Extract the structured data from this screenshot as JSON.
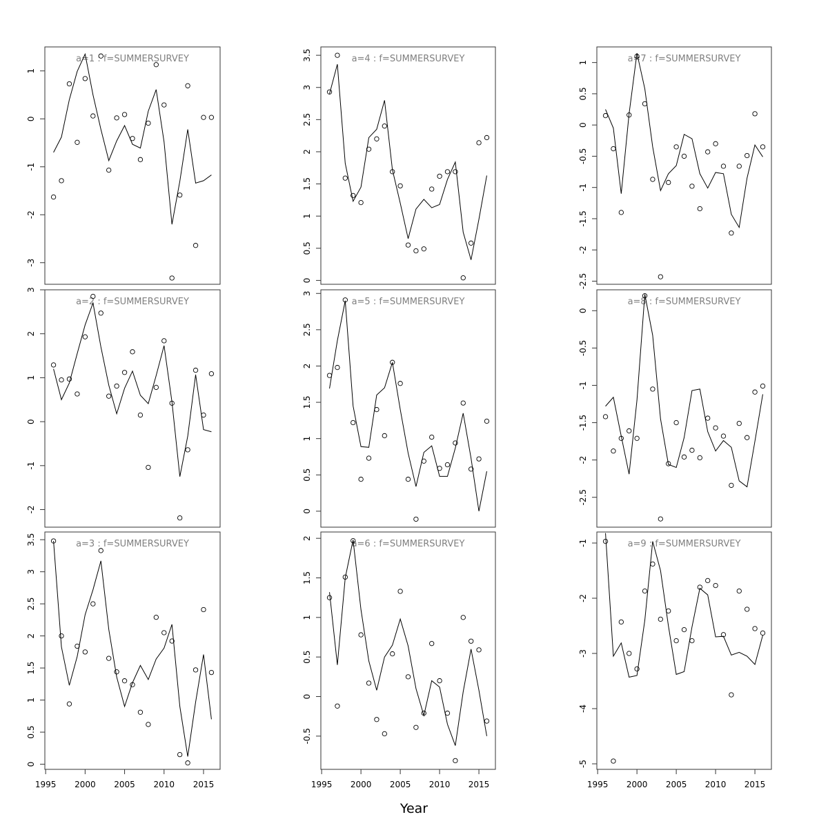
{
  "figure": {
    "xlabel": "Year",
    "x_ticks": [
      1995,
      2000,
      2005,
      2010,
      2015
    ]
  },
  "chart_data": [
    {
      "type": "scatter",
      "title": "a=1  :  f=SUMMERSURVEY",
      "x": [
        1996,
        1997,
        1998,
        1999,
        2000,
        2001,
        2002,
        2003,
        2004,
        2005,
        2006,
        2007,
        2008,
        2009,
        2010,
        2011,
        2012,
        2013,
        2014,
        2015,
        2016
      ],
      "y_ticks": [
        -3,
        -2,
        -1,
        0,
        1
      ],
      "ylim": [
        -3.45,
        1.5
      ],
      "series": [
        {
          "kind": "points",
          "values": [
            -1.63,
            -1.29,
            0.73,
            -0.49,
            0.84,
            0.06,
            1.31,
            -1.07,
            0.02,
            0.09,
            -0.41,
            -0.85,
            -0.09,
            1.13,
            0.29,
            -3.32,
            -1.59,
            0.69,
            -2.64,
            0.03,
            0.03
          ]
        },
        {
          "kind": "line",
          "values": [
            -0.7,
            -0.38,
            0.4,
            0.99,
            1.35,
            0.5,
            -0.22,
            -0.87,
            -0.46,
            -0.14,
            -0.53,
            -0.61,
            0.16,
            0.61,
            -0.48,
            -2.2,
            -1.3,
            -0.22,
            -1.34,
            -1.29,
            -1.17
          ]
        }
      ]
    },
    {
      "type": "scatter",
      "title": "a=2  :  f=SUMMERSURVEY",
      "x": [
        1996,
        1997,
        1998,
        1999,
        2000,
        2001,
        2002,
        2003,
        2004,
        2005,
        2006,
        2007,
        2008,
        2009,
        2010,
        2011,
        2012,
        2013,
        2014,
        2015,
        2016
      ],
      "y_ticks": [
        -2,
        -1,
        0,
        1,
        2,
        3
      ],
      "ylim": [
        -2.4,
        3.0
      ],
      "series": [
        {
          "kind": "points",
          "values": [
            1.29,
            0.95,
            0.97,
            0.63,
            1.93,
            2.85,
            2.47,
            0.58,
            0.81,
            1.12,
            1.59,
            0.15,
            -1.04,
            0.78,
            1.84,
            0.42,
            -2.19,
            -0.64,
            1.17,
            0.15,
            1.09
          ]
        },
        {
          "kind": "line",
          "values": [
            1.2,
            0.5,
            0.88,
            1.55,
            2.2,
            2.7,
            1.7,
            0.83,
            0.18,
            0.76,
            1.15,
            0.6,
            0.41,
            1.05,
            1.73,
            0.45,
            -1.25,
            -0.33,
            1.07,
            -0.18,
            -0.23
          ]
        }
      ]
    },
    {
      "type": "scatter",
      "title": "a=3  :  f=SUMMERSURVEY",
      "x": [
        1996,
        1997,
        1998,
        1999,
        2000,
        2001,
        2002,
        2003,
        2004,
        2005,
        2006,
        2007,
        2008,
        2009,
        2010,
        2011,
        2012,
        2013,
        2014,
        2015,
        2016
      ],
      "y_ticks": [
        0,
        0.5,
        1,
        1.5,
        2,
        2.5,
        3,
        3.5
      ],
      "ylim": [
        -0.08,
        3.62
      ],
      "series": [
        {
          "kind": "points",
          "values": [
            3.48,
            2.0,
            0.94,
            1.84,
            1.75,
            2.5,
            3.33,
            1.65,
            1.44,
            1.3,
            1.24,
            0.81,
            0.62,
            2.29,
            2.05,
            1.92,
            0.15,
            0.02,
            1.47,
            2.41,
            1.43
          ]
        },
        {
          "kind": "line",
          "values": [
            3.48,
            1.83,
            1.23,
            1.68,
            2.33,
            2.72,
            3.17,
            2.1,
            1.36,
            0.9,
            1.27,
            1.54,
            1.32,
            1.64,
            1.81,
            2.18,
            0.9,
            0.12,
            0.97,
            1.71,
            0.7
          ]
        }
      ]
    },
    {
      "type": "scatter",
      "title": "a=4  :  f=SUMMERSURVEY",
      "x": [
        1996,
        1997,
        1998,
        1999,
        2000,
        2001,
        2002,
        2003,
        2004,
        2005,
        2006,
        2007,
        2008,
        2009,
        2010,
        2011,
        2012,
        2013,
        2014,
        2015,
        2016
      ],
      "y_ticks": [
        0,
        0.5,
        1,
        1.5,
        2,
        2.5,
        3,
        3.5
      ],
      "ylim": [
        -0.06,
        3.63
      ],
      "series": [
        {
          "kind": "points",
          "values": [
            2.93,
            3.5,
            1.59,
            1.32,
            1.21,
            2.04,
            2.2,
            2.4,
            1.69,
            1.47,
            0.55,
            0.46,
            0.49,
            1.42,
            1.62,
            1.69,
            1.69,
            0.04,
            0.58,
            2.14,
            2.22
          ]
        },
        {
          "kind": "line",
          "values": [
            2.9,
            3.36,
            1.82,
            1.23,
            1.45,
            2.22,
            2.35,
            2.8,
            1.72,
            1.2,
            0.65,
            1.11,
            1.26,
            1.13,
            1.18,
            1.57,
            1.84,
            0.75,
            0.32,
            0.95,
            1.63
          ]
        }
      ]
    },
    {
      "type": "scatter",
      "title": "a=5  :  f=SUMMERSURVEY",
      "x": [
        1996,
        1997,
        1998,
        1999,
        2000,
        2001,
        2002,
        2003,
        2004,
        2005,
        2006,
        2007,
        2008,
        2009,
        2010,
        2011,
        2012,
        2013,
        2014,
        2015,
        2016
      ],
      "y_ticks": [
        0,
        0.5,
        1,
        1.5,
        2,
        2.5,
        3
      ],
      "ylim": [
        -0.22,
        3.05
      ],
      "series": [
        {
          "kind": "points",
          "values": [
            1.87,
            1.98,
            2.91,
            1.22,
            0.44,
            0.73,
            1.4,
            1.04,
            2.05,
            1.76,
            0.44,
            -0.11,
            0.69,
            1.02,
            0.59,
            0.64,
            0.94,
            1.49,
            0.58,
            0.72,
            1.24
          ]
        },
        {
          "kind": "line",
          "values": [
            1.69,
            2.35,
            2.9,
            1.45,
            0.89,
            0.88,
            1.6,
            1.7,
            2.05,
            1.4,
            0.8,
            0.34,
            0.81,
            0.9,
            0.48,
            0.48,
            0.87,
            1.35,
            0.73,
            0.0,
            0.55
          ]
        }
      ]
    },
    {
      "type": "scatter",
      "title": "a=6  :  f=SUMMERSURVEY",
      "x": [
        1996,
        1997,
        1998,
        1999,
        2000,
        2001,
        2002,
        2003,
        2004,
        2005,
        2006,
        2007,
        2008,
        2009,
        2010,
        2011,
        2012,
        2013,
        2014,
        2015,
        2016
      ],
      "y_ticks": [
        -0.5,
        0,
        0.5,
        1,
        1.5,
        2
      ],
      "ylim": [
        -0.92,
        2.08
      ],
      "series": [
        {
          "kind": "points",
          "values": [
            1.25,
            -0.12,
            1.51,
            1.97,
            0.78,
            0.17,
            -0.29,
            -0.47,
            0.54,
            1.33,
            0.25,
            -0.39,
            -0.21,
            0.67,
            0.2,
            -0.21,
            -0.81,
            1.0,
            0.7,
            0.59,
            -0.31
          ]
        },
        {
          "kind": "line",
          "values": [
            1.32,
            0.4,
            1.5,
            1.98,
            1.1,
            0.45,
            0.08,
            0.5,
            0.65,
            0.98,
            0.64,
            0.1,
            -0.24,
            0.2,
            0.12,
            -0.35,
            -0.62,
            0.06,
            0.6,
            0.08,
            -0.5
          ]
        }
      ]
    },
    {
      "type": "scatter",
      "title": "a=7  :  f=SUMMERSURVEY",
      "x": [
        1996,
        1997,
        1998,
        1999,
        2000,
        2001,
        2002,
        2003,
        2004,
        2005,
        2006,
        2007,
        2008,
        2009,
        2010,
        2011,
        2012,
        2013,
        2014,
        2015,
        2016
      ],
      "y_ticks": [
        -2.5,
        -2,
        -1.5,
        -1,
        -0.5,
        0,
        0.5,
        1
      ],
      "ylim": [
        -2.55,
        1.25
      ],
      "series": [
        {
          "kind": "points",
          "values": [
            0.15,
            -0.38,
            -1.4,
            0.16,
            1.1,
            0.34,
            -0.87,
            -2.43,
            -0.92,
            -0.35,
            -0.5,
            -0.98,
            -1.34,
            -0.43,
            -0.3,
            -0.66,
            -1.73,
            -0.66,
            -0.49,
            0.18,
            -0.35
          ]
        },
        {
          "kind": "line",
          "values": [
            0.25,
            -0.05,
            -1.1,
            0.18,
            1.15,
            0.58,
            -0.35,
            -1.05,
            -0.78,
            -0.65,
            -0.15,
            -0.22,
            -0.78,
            -1.01,
            -0.76,
            -0.78,
            -1.43,
            -1.64,
            -0.85,
            -0.32,
            -0.51
          ]
        }
      ]
    },
    {
      "type": "scatter",
      "title": "a=8  :  f=SUMMERSURVEY",
      "x": [
        1996,
        1997,
        1998,
        1999,
        2000,
        2001,
        2002,
        2003,
        2004,
        2005,
        2006,
        2007,
        2008,
        2009,
        2010,
        2011,
        2012,
        2013,
        2014,
        2015,
        2016
      ],
      "y_ticks": [
        -2.5,
        -2,
        -1.5,
        -1,
        -0.5,
        0
      ],
      "ylim": [
        -2.9,
        0.28
      ],
      "series": [
        {
          "kind": "points",
          "values": [
            -1.42,
            -1.88,
            -1.71,
            -1.61,
            -1.71,
            0.2,
            -1.05,
            -2.79,
            -2.05,
            -1.5,
            -1.96,
            -1.87,
            -1.97,
            -1.44,
            -1.57,
            -1.68,
            -2.34,
            -1.51,
            -1.7,
            -1.09,
            -1.01
          ]
        },
        {
          "kind": "line",
          "values": [
            -1.28,
            -1.16,
            -1.68,
            -2.19,
            -1.2,
            0.22,
            -0.33,
            -1.45,
            -2.06,
            -2.1,
            -1.7,
            -1.07,
            -1.05,
            -1.62,
            -1.88,
            -1.74,
            -1.83,
            -2.28,
            -2.36,
            -1.75,
            -1.12
          ]
        }
      ]
    },
    {
      "type": "scatter",
      "title": "a=9  :  f=SUMMERSURVEY",
      "x": [
        1996,
        1997,
        1998,
        1999,
        2000,
        2001,
        2002,
        2003,
        2004,
        2005,
        2006,
        2007,
        2008,
        2009,
        2010,
        2011,
        2012,
        2013,
        2014,
        2015,
        2016
      ],
      "y_ticks": [
        -5,
        -4,
        -3,
        -2,
        -1
      ],
      "ylim": [
        -5.1,
        -0.8
      ],
      "series": [
        {
          "kind": "points",
          "values": [
            -0.97,
            -4.95,
            -2.43,
            -3.0,
            -3.28,
            -1.87,
            -1.38,
            -2.38,
            -2.23,
            -2.77,
            -2.57,
            -2.77,
            -1.8,
            -1.68,
            -1.77,
            -2.66,
            -3.75,
            -1.87,
            -2.2,
            -2.55,
            -2.63
          ]
        },
        {
          "kind": "line",
          "values": [
            -0.82,
            -3.05,
            -2.81,
            -3.43,
            -3.4,
            -2.4,
            -0.97,
            -1.5,
            -2.5,
            -3.38,
            -3.33,
            -2.52,
            -1.82,
            -1.94,
            -2.7,
            -2.69,
            -3.03,
            -2.98,
            -3.05,
            -3.2,
            -2.67
          ]
        }
      ]
    }
  ]
}
